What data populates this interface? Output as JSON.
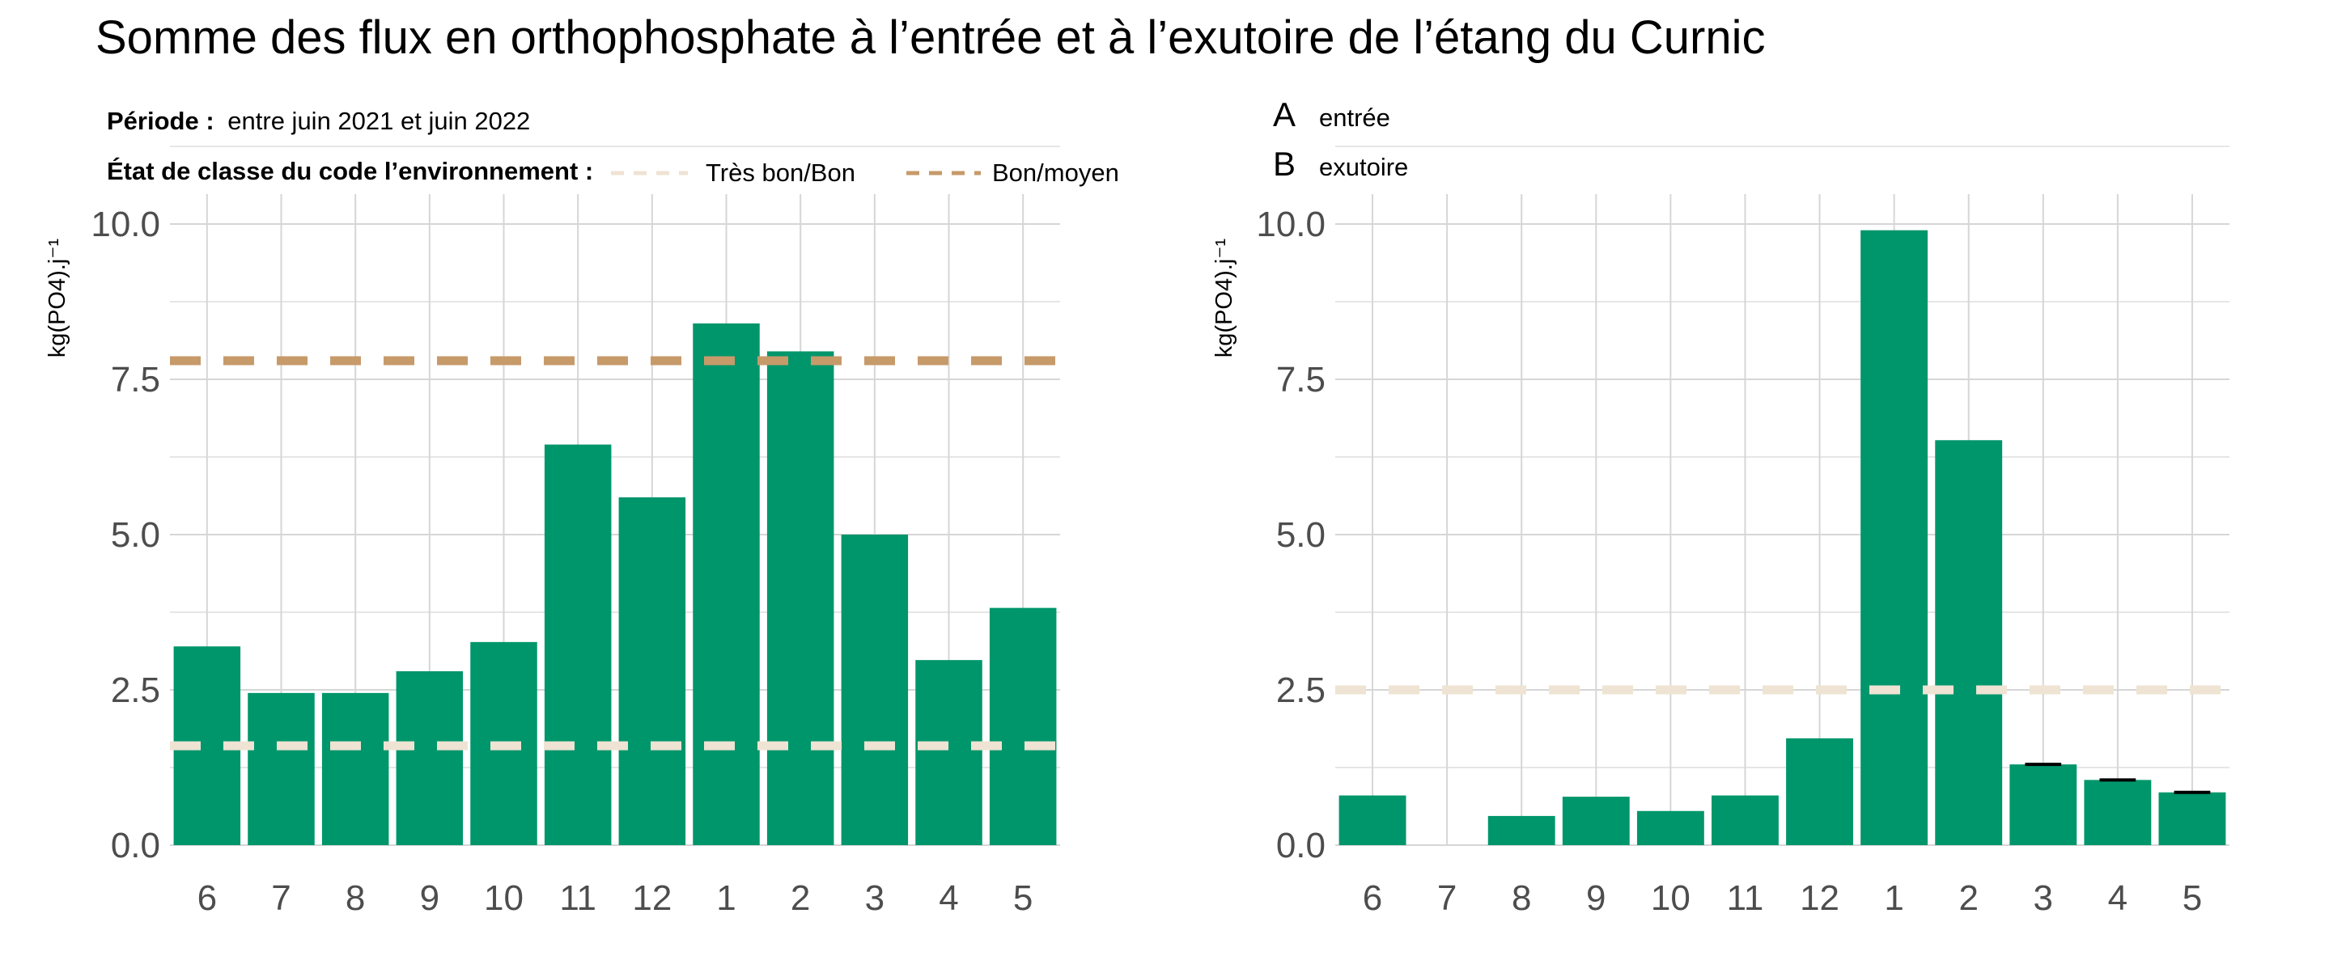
{
  "title": "Somme des flux en orthophosphate à l’entrée et à l’exutoire de l’étang du Curnic",
  "subtitle": {
    "periode_label": "Période :",
    "periode_value": "entre juin 2021 et juin 2022",
    "etat_label": "État de classe du code l’environnement :",
    "legend": [
      {
        "label": "Très bon/Bon",
        "color": "#efe3d3"
      },
      {
        "label": "Bon/moyen",
        "color": "#c79a6a"
      }
    ]
  },
  "panel_legend": [
    {
      "key": "A",
      "label": "entrée"
    },
    {
      "key": "B",
      "label": "exutoire"
    }
  ],
  "colors": {
    "bar": "#00966b",
    "grid": "#d6d6d6",
    "axis_text": "#4d4d4d",
    "tres_bon_bon": "#efe3d3",
    "bon_moyen": "#c79a6a",
    "errorbar": "#000000"
  },
  "chart_data": [
    {
      "type": "bar",
      "panel": "A",
      "categories": [
        "6",
        "7",
        "8",
        "9",
        "10",
        "11",
        "12",
        "1",
        "2",
        "3",
        "4",
        "5"
      ],
      "values": [
        3.2,
        2.45,
        2.45,
        2.8,
        3.27,
        6.45,
        5.6,
        8.4,
        7.95,
        5.0,
        2.98,
        3.82
      ],
      "ylabel": "kg(PO4).j⁻¹",
      "ylim": [
        0,
        10
      ],
      "yticks": [
        "0.0",
        "2.5",
        "5.0",
        "7.5",
        "10.0"
      ],
      "thresholds": [
        {
          "name": "Bon/moyen",
          "value": 7.8
        },
        {
          "name": "Très bon/Bon",
          "value": 1.6
        }
      ],
      "grid": true
    },
    {
      "type": "bar",
      "panel": "B",
      "categories": [
        "6",
        "7",
        "8",
        "9",
        "10",
        "11",
        "12",
        "1",
        "2",
        "3",
        "4",
        "5"
      ],
      "values": [
        0.8,
        null,
        0.47,
        0.78,
        0.55,
        0.8,
        1.72,
        9.9,
        6.52,
        1.3,
        1.05,
        0.85
      ],
      "errorbars": [
        null,
        null,
        null,
        null,
        null,
        null,
        null,
        null,
        null,
        1.3,
        1.05,
        0.85
      ],
      "ylabel": "kg(PO4).j⁻¹",
      "ylim": [
        0,
        10
      ],
      "yticks": [
        "0.0",
        "2.5",
        "5.0",
        "7.5",
        "10.0"
      ],
      "thresholds": [
        {
          "name": "Très bon/Bon",
          "value": 2.5
        }
      ],
      "grid": true
    }
  ]
}
